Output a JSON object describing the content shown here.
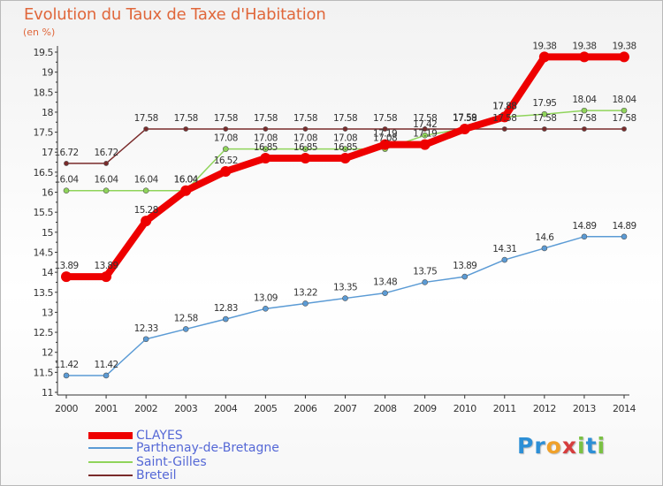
{
  "header": {
    "title": "Evolution du Taux de Taxe d'Habitation",
    "unit": "(en %)"
  },
  "logo": {
    "text": "Proxiti",
    "letters": [
      "P",
      "r",
      "o",
      "x",
      "i",
      "t",
      "i"
    ],
    "colors": [
      "#2d8fd6",
      "#2d8fd6",
      "#f0a12a",
      "#d63d3d",
      "#7ac143",
      "#2d8fd6",
      "#7ac143"
    ]
  },
  "chart_data": {
    "type": "line",
    "x": [
      2000,
      2001,
      2002,
      2003,
      2004,
      2005,
      2006,
      2007,
      2008,
      2009,
      2010,
      2011,
      2012,
      2013,
      2014
    ],
    "ylim": [
      11,
      19.5
    ],
    "yticks": [
      11,
      11.5,
      12,
      12.5,
      13,
      13.5,
      14,
      14.5,
      15,
      15.5,
      16,
      16.5,
      17,
      17.5,
      18,
      18.5,
      19,
      19.5
    ],
    "grid": false,
    "legend_position": "bottom-left",
    "series": [
      {
        "name": "Breteil",
        "color": "#7a2b2b",
        "width": 1.5,
        "marker": 2.6,
        "values": [
          16.72,
          16.72,
          17.58,
          17.58,
          17.58,
          17.58,
          17.58,
          17.58,
          17.58,
          17.58,
          17.58,
          17.58,
          17.58,
          17.58,
          17.58
        ]
      },
      {
        "name": "Saint-Gilles",
        "color": "#8fd45a",
        "width": 1.5,
        "marker": 3,
        "values": [
          16.04,
          16.04,
          16.04,
          16.04,
          17.08,
          17.08,
          17.08,
          17.08,
          17.08,
          17.42,
          17.59,
          17.88,
          17.95,
          18.04,
          18.04
        ]
      },
      {
        "name": "Parthenay-de-Bretagne",
        "color": "#5b9bd5",
        "width": 1.5,
        "marker": 3,
        "values": [
          11.42,
          11.42,
          12.33,
          12.58,
          12.83,
          13.09,
          13.22,
          13.35,
          13.48,
          13.75,
          13.89,
          14.31,
          14.6,
          14.89,
          14.89
        ]
      },
      {
        "name": "CLAYES",
        "color": "#ee0000",
        "width": 8,
        "marker": 6,
        "values": [
          13.89,
          13.89,
          15.28,
          16.04,
          16.52,
          16.85,
          16.85,
          16.85,
          17.19,
          17.19,
          17.58,
          17.88,
          19.38,
          19.38,
          19.38
        ]
      }
    ],
    "value_labels": {
      "Breteil": [
        "16.72",
        "16.72",
        "17.58",
        "17.58",
        "17.58",
        "17.58",
        "17.58",
        "17.58",
        "17.58",
        "17.58",
        "17.58",
        "17.58",
        "17.58",
        "17.58",
        "17.58"
      ],
      "Saint-Gilles": [
        "16.04",
        "16.04",
        "16.04",
        "16.04",
        "17.08",
        "17.08",
        "17.08",
        "17.08",
        "17.08",
        "17.42",
        "17.59",
        "17.88",
        "17.95",
        "18.04",
        "18.04"
      ],
      "Parthenay-de-Bretagne": [
        "11.42",
        "11.42",
        "12.33",
        "12.58",
        "12.83",
        "13.09",
        "13.22",
        "13.35",
        "13.48",
        "13.75",
        "13.89",
        "14.31",
        "14.6",
        "14.89",
        "14.89"
      ],
      "CLAYES": [
        "13.89",
        "13.89",
        "15.28",
        "16.04",
        "16.52",
        "16.85",
        "16.85",
        "16.85",
        "17.19",
        "17.19",
        "17.58",
        "17.88",
        "19.38",
        "19.38",
        "19.38"
      ]
    }
  },
  "legend": [
    {
      "name": "CLAYES",
      "color": "#ee0000"
    },
    {
      "name": "Parthenay-de-Bretagne",
      "color": "#5b9bd5"
    },
    {
      "name": "Saint-Gilles",
      "color": "#8fd45a"
    },
    {
      "name": "Breteil",
      "color": "#7a2b2b"
    }
  ]
}
